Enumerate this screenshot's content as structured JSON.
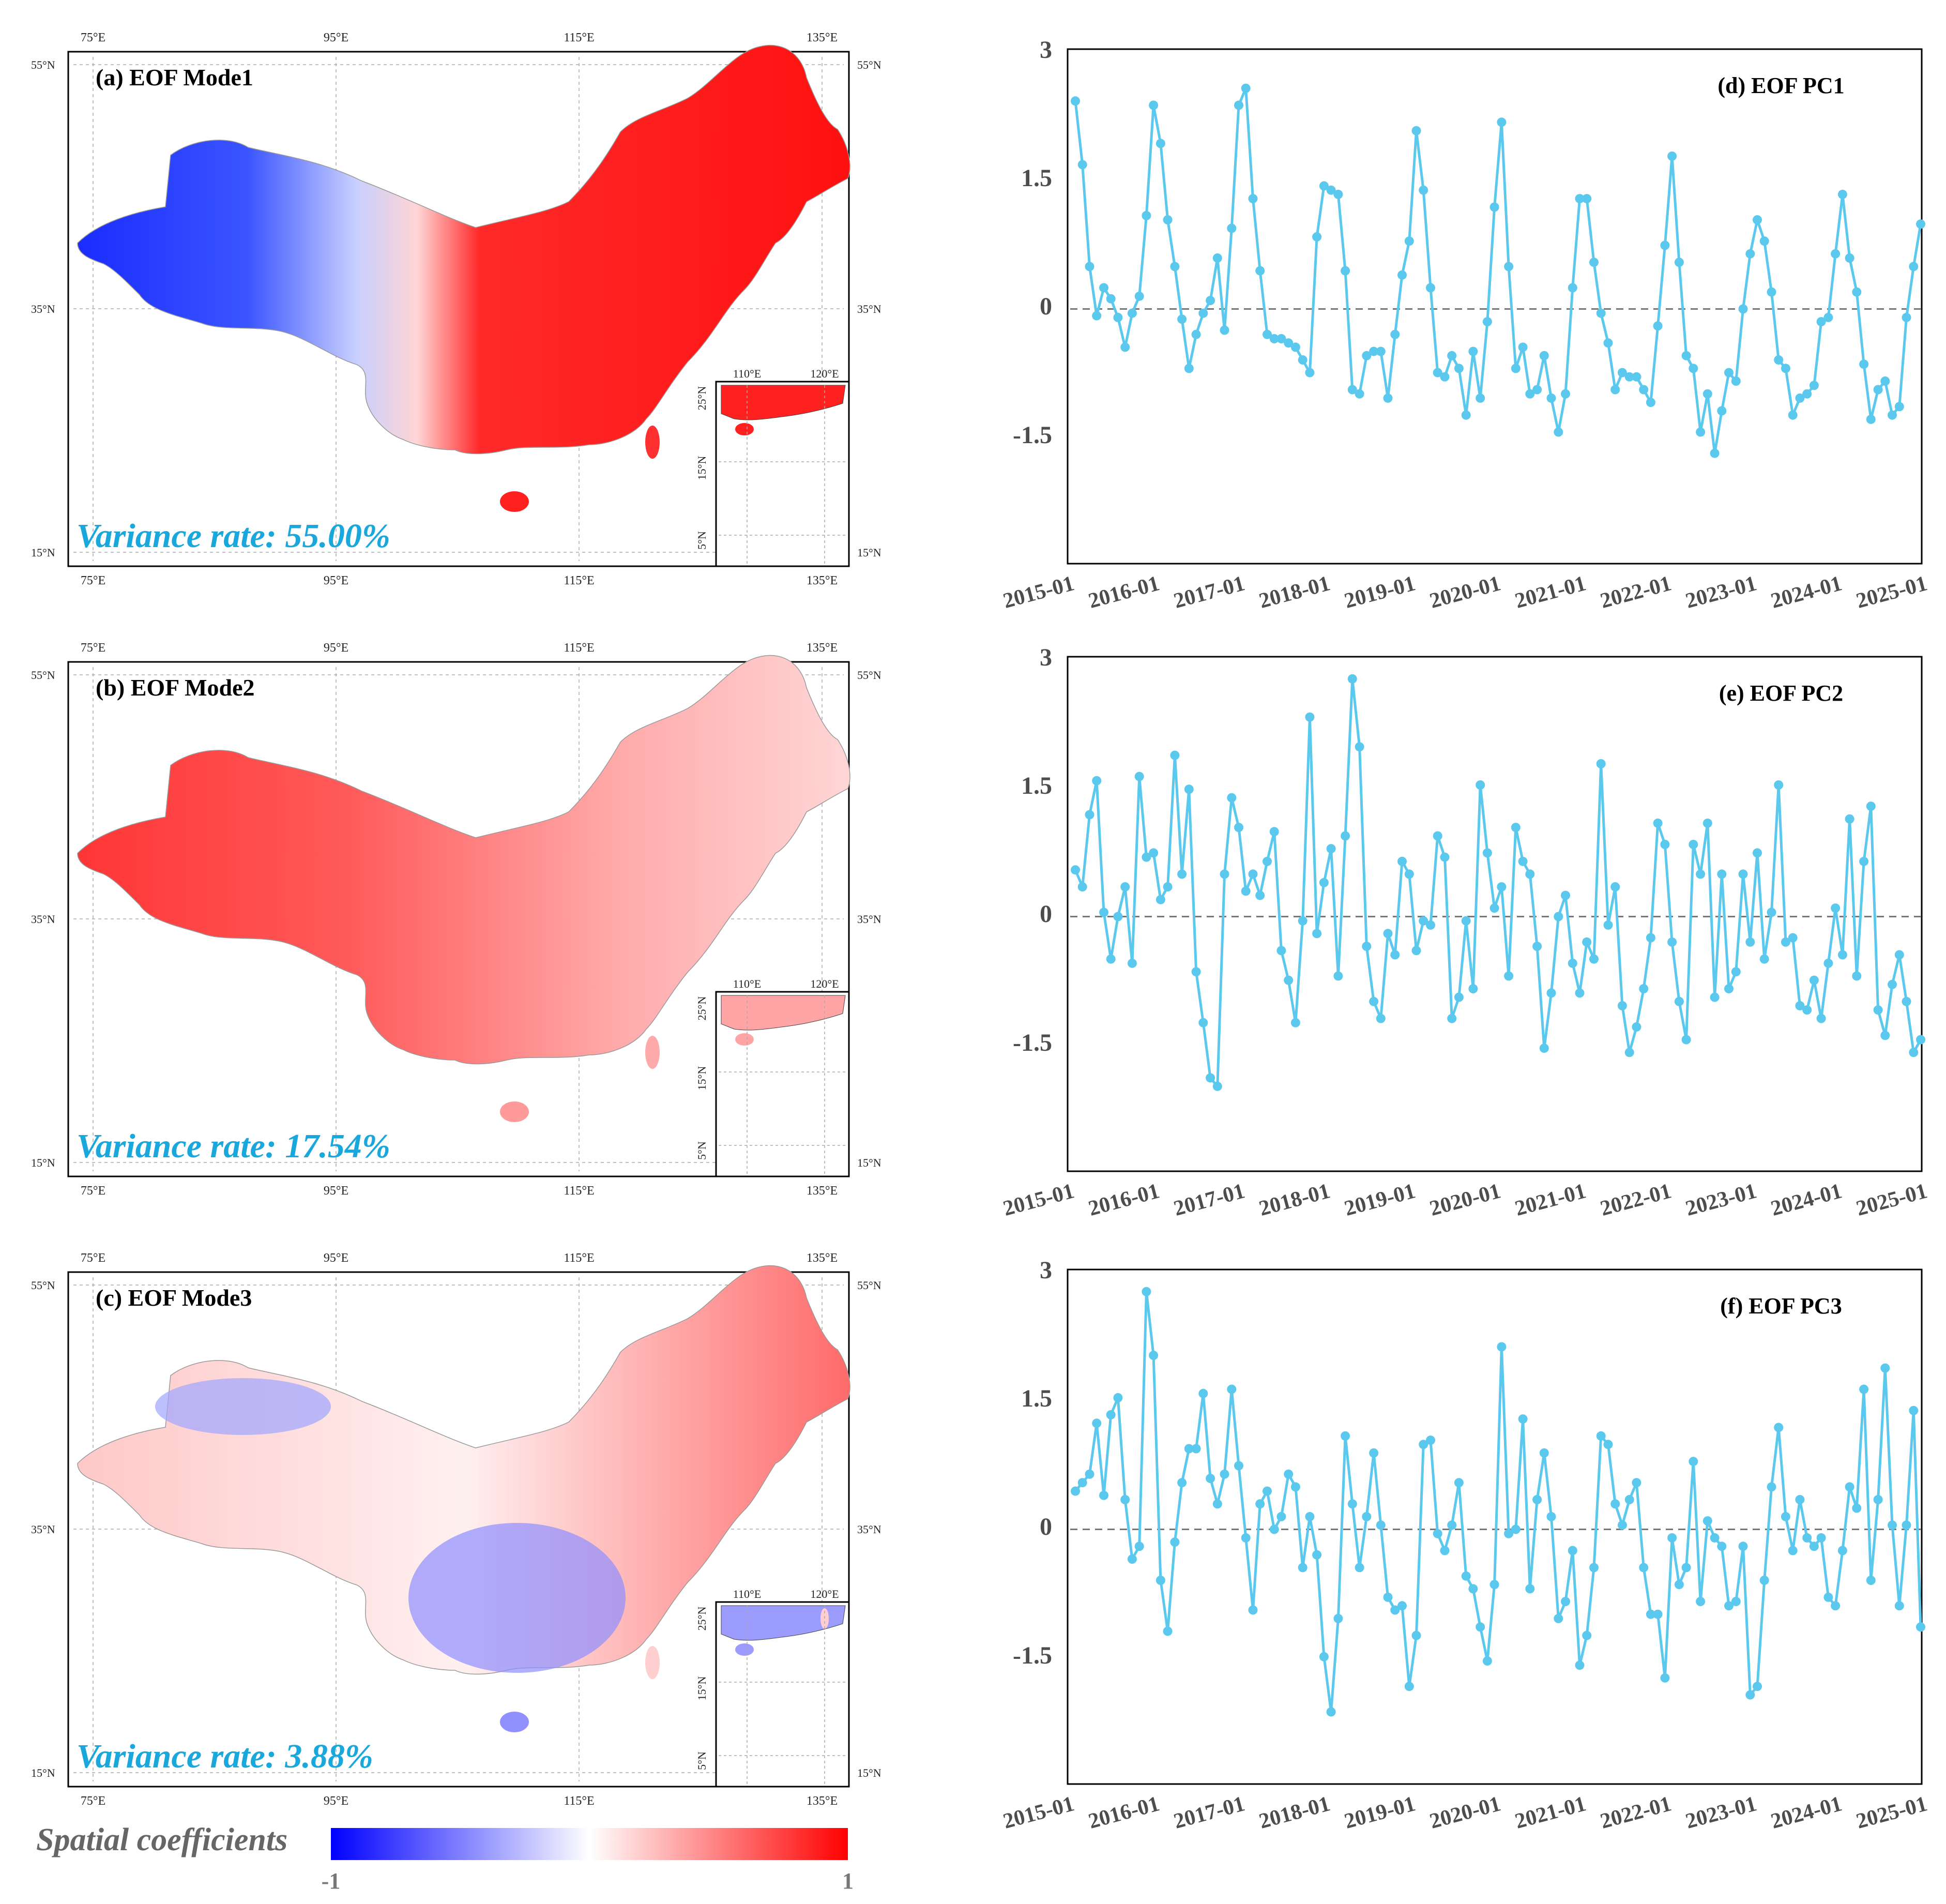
{
  "colorbar": {
    "label": "Spatial coefficients",
    "min_label": "-1",
    "max_label": "1",
    "colors": [
      "#0000ff",
      "#ffffff",
      "#ff0000"
    ]
  },
  "map_panels": [
    {
      "title": "(a) EOF Mode1",
      "variance": "Variance rate: 55.00%",
      "pattern": "east-positive-west-negative",
      "lon_ticks": [
        "75°E",
        "95°E",
        "115°E",
        "135°E"
      ],
      "lat_ticks": [
        "55°N",
        "35°N",
        "15°N"
      ],
      "inset_lon_ticks": [
        "110°E",
        "120°E"
      ],
      "inset_lat_ticks": [
        "25°N",
        "15°N",
        "5°N"
      ]
    },
    {
      "title": "(b) EOF Mode2",
      "variance": "Variance rate: 17.54%",
      "pattern": "uniform-positive",
      "lon_ticks": [
        "75°E",
        "95°E",
        "115°E",
        "135°E"
      ],
      "lat_ticks": [
        "55°N",
        "35°N",
        "15°N"
      ],
      "inset_lon_ticks": [
        "110°E",
        "120°E"
      ],
      "inset_lat_ticks": [
        "25°N",
        "15°N",
        "5°N"
      ]
    },
    {
      "title": "(c) EOF Mode3",
      "variance": "Variance rate: 3.88%",
      "pattern": "tripole",
      "lon_ticks": [
        "75°E",
        "95°E",
        "115°E",
        "135°E"
      ],
      "lat_ticks": [
        "55°N",
        "35°N",
        "15°N"
      ],
      "inset_lon_ticks": [
        "110°E",
        "120°E"
      ],
      "inset_lat_ticks": [
        "25°N",
        "15°N",
        "5°N"
      ]
    }
  ],
  "chart_data": [
    {
      "type": "line",
      "title": "(d) EOF PC1",
      "color": "#5bc8ee",
      "ylim": [
        -3,
        3
      ],
      "yticks": [
        "3",
        "1.5",
        "0",
        "-1.5"
      ],
      "ytick_values": [
        3,
        1.5,
        0,
        -1.5
      ],
      "xticks": [
        "2015-01",
        "2016-01",
        "2017-01",
        "2018-01",
        "2019-01",
        "2020-01",
        "2021-01",
        "2022-01",
        "2023-01",
        "2024-01",
        "2025-01"
      ],
      "x_start": "2015-01",
      "x_end": "2025-01",
      "reference_line": 0,
      "values": [
        2.45,
        1.7,
        0.5,
        -0.08,
        0.25,
        0.12,
        -0.1,
        -0.45,
        -0.05,
        0.15,
        1.1,
        2.4,
        1.95,
        1.05,
        0.5,
        -0.12,
        -0.7,
        -0.3,
        -0.05,
        0.1,
        0.6,
        -0.25,
        0.95,
        2.4,
        2.6,
        1.3,
        0.45,
        -0.3,
        -0.35,
        -0.35,
        -0.4,
        -0.45,
        -0.6,
        -0.75,
        0.85,
        1.45,
        1.4,
        1.35,
        0.45,
        -0.95,
        -1.0,
        -0.55,
        -0.5,
        -0.5,
        -1.05,
        -0.3,
        0.4,
        0.8,
        2.1,
        1.4,
        0.25,
        -0.75,
        -0.8,
        -0.55,
        -0.7,
        -1.25,
        -0.5,
        -1.05,
        -0.15,
        1.2,
        2.2,
        0.5,
        -0.7,
        -0.45,
        -1.0,
        -0.95,
        -0.55,
        -1.05,
        -1.45,
        -1.0,
        0.25,
        1.3,
        1.3,
        0.55,
        -0.05,
        -0.4,
        -0.95,
        -0.75,
        -0.8,
        -0.8,
        -0.95,
        -1.1,
        -0.2,
        0.75,
        1.8,
        0.55,
        -0.55,
        -0.7,
        -1.45,
        -1.0,
        -1.7,
        -1.2,
        -0.75,
        -0.85,
        0.0,
        0.65,
        1.05,
        0.8,
        0.2,
        -0.6,
        -0.7,
        -1.25,
        -1.05,
        -1.0,
        -0.9,
        -0.15,
        -0.1,
        0.65,
        1.35,
        0.6,
        0.2,
        -0.65,
        -1.3,
        -0.95,
        -0.85,
        -1.25,
        -1.15,
        -0.1,
        0.5,
        1.0
      ]
    },
    {
      "type": "line",
      "title": "(e) EOF PC2",
      "color": "#5bc8ee",
      "ylim": [
        -3,
        3
      ],
      "yticks": [
        "3",
        "1.5",
        "0",
        "-1.5"
      ],
      "ytick_values": [
        3,
        1.5,
        0,
        -1.5
      ],
      "xticks": [
        "2015-01",
        "2016-01",
        "2017-01",
        "2018-01",
        "2019-01",
        "2020-01",
        "2021-01",
        "2022-01",
        "2023-01",
        "2024-01",
        "2025-01"
      ],
      "x_start": "2015-01",
      "x_end": "2025-01",
      "reference_line": 0,
      "values": [
        0.55,
        0.35,
        1.2,
        1.6,
        0.05,
        -0.5,
        0.0,
        0.35,
        -0.55,
        1.65,
        0.7,
        0.75,
        0.2,
        0.35,
        1.9,
        0.5,
        1.5,
        -0.65,
        -1.25,
        -1.9,
        -2.0,
        0.5,
        1.4,
        1.05,
        0.3,
        0.5,
        0.25,
        0.65,
        1.0,
        -0.4,
        -0.75,
        -1.25,
        -0.05,
        2.35,
        -0.2,
        0.4,
        0.8,
        -0.7,
        0.95,
        2.8,
        2.0,
        -0.35,
        -1.0,
        -1.2,
        -0.2,
        -0.45,
        0.65,
        0.5,
        -0.4,
        -0.05,
        -0.1,
        0.95,
        0.7,
        -1.2,
        -0.95,
        -0.05,
        -0.85,
        1.55,
        0.75,
        0.1,
        0.35,
        -0.7,
        1.05,
        0.65,
        0.5,
        -0.35,
        -1.55,
        -0.9,
        0.0,
        0.25,
        -0.55,
        -0.9,
        -0.3,
        -0.5,
        1.8,
        -0.1,
        0.35,
        -1.05,
        -1.6,
        -1.3,
        -0.85,
        -0.25,
        1.1,
        0.85,
        -0.3,
        -1.0,
        -1.45,
        0.85,
        0.5,
        1.1,
        -0.95,
        0.5,
        -0.85,
        -0.65,
        0.5,
        -0.3,
        0.75,
        -0.5,
        0.05,
        1.55,
        -0.3,
        -0.25,
        -1.05,
        -1.1,
        -0.75,
        -1.2,
        -0.55,
        0.1,
        -0.45,
        1.15,
        -0.7,
        0.65,
        1.3,
        -1.1,
        -1.4,
        -0.8,
        -0.45,
        -1.0,
        -1.6,
        -1.45
      ]
    },
    {
      "type": "line",
      "title": "(f) EOF PC3",
      "color": "#5bc8ee",
      "ylim": [
        -3,
        3
      ],
      "yticks": [
        "3",
        "1.5",
        "0",
        "-1.5"
      ],
      "ytick_values": [
        3,
        1.5,
        0,
        -1.5
      ],
      "xticks": [
        "2015-01",
        "2016-01",
        "2017-01",
        "2018-01",
        "2019-01",
        "2020-01",
        "2021-01",
        "2022-01",
        "2023-01",
        "2024-01",
        "2025-01"
      ],
      "x_start": "2015-01",
      "x_end": "2025-01",
      "reference_line": 0,
      "values": [
        0.45,
        0.55,
        0.65,
        1.25,
        0.4,
        1.35,
        1.55,
        0.35,
        -0.35,
        -0.2,
        2.8,
        2.05,
        -0.6,
        -1.2,
        -0.15,
        0.55,
        0.95,
        0.95,
        1.6,
        0.6,
        0.3,
        0.65,
        1.65,
        0.75,
        -0.1,
        -0.95,
        0.3,
        0.45,
        0.0,
        0.15,
        0.65,
        0.5,
        -0.45,
        0.15,
        -0.3,
        -1.5,
        -2.15,
        -1.05,
        1.1,
        0.3,
        -0.45,
        0.15,
        0.9,
        0.05,
        -0.8,
        -0.95,
        -0.9,
        -1.85,
        -1.25,
        1.0,
        1.05,
        -0.05,
        -0.25,
        0.05,
        0.55,
        -0.55,
        -0.7,
        -1.15,
        -1.55,
        -0.65,
        2.15,
        -0.05,
        0.0,
        1.3,
        -0.7,
        0.35,
        0.9,
        0.15,
        -1.05,
        -0.85,
        -0.25,
        -1.6,
        -1.25,
        -0.45,
        1.1,
        1.0,
        0.3,
        0.05,
        0.35,
        0.55,
        -0.45,
        -1.0,
        -1.0,
        -1.75,
        -0.1,
        -0.65,
        -0.45,
        0.8,
        -0.85,
        0.1,
        -0.1,
        -0.2,
        -0.9,
        -0.85,
        -0.2,
        -1.95,
        -1.85,
        -0.6,
        0.5,
        1.2,
        0.15,
        -0.25,
        0.35,
        -0.1,
        -0.2,
        -0.1,
        -0.8,
        -0.9,
        -0.25,
        0.5,
        0.25,
        1.65,
        -0.6,
        0.35,
        1.9,
        0.05,
        -0.9,
        0.05,
        1.4,
        -1.15
      ]
    }
  ]
}
